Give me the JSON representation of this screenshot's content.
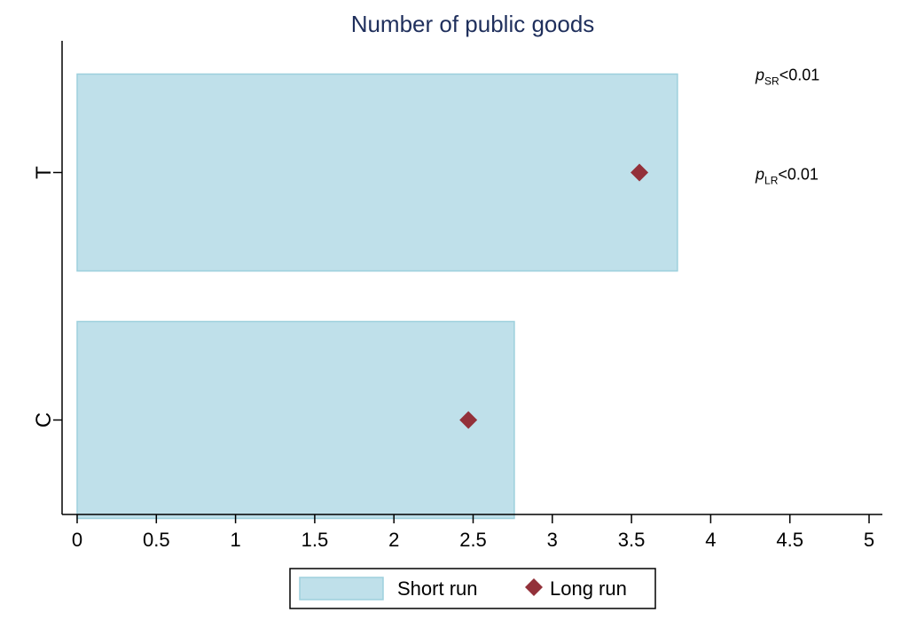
{
  "chart_data": {
    "type": "bar",
    "orientation": "horizontal",
    "title": "Number of public goods",
    "categories": [
      "T",
      "C"
    ],
    "series": [
      {
        "name": "Short run",
        "kind": "bar",
        "values": [
          3.79,
          2.76
        ],
        "color": "#bfe0ea",
        "edge_color": "#9dd0dd"
      },
      {
        "name": "Long run",
        "kind": "marker",
        "marker": "diamond",
        "values": [
          3.55,
          2.47
        ],
        "color": "#93313a"
      }
    ],
    "xlim": [
      0,
      5
    ],
    "xticks": [
      0,
      0.5,
      1,
      1.5,
      2,
      2.5,
      3,
      3.5,
      4,
      4.5,
      5
    ],
    "xtick_labels": [
      "0",
      "0.5",
      "1",
      "1.5",
      "2",
      "2.5",
      "3",
      "3.5",
      "4",
      "4.5",
      "5"
    ],
    "xlabel": "",
    "ylabel": "",
    "grid": false,
    "legend_position": "bottom",
    "annotations": [
      {
        "italic": "p",
        "sub": "SR",
        "rest": "<0.01",
        "category": "T",
        "placement": "upper"
      },
      {
        "italic": "p",
        "sub": "LR",
        "rest": "<0.01",
        "category": "T",
        "placement": "middle"
      }
    ]
  }
}
